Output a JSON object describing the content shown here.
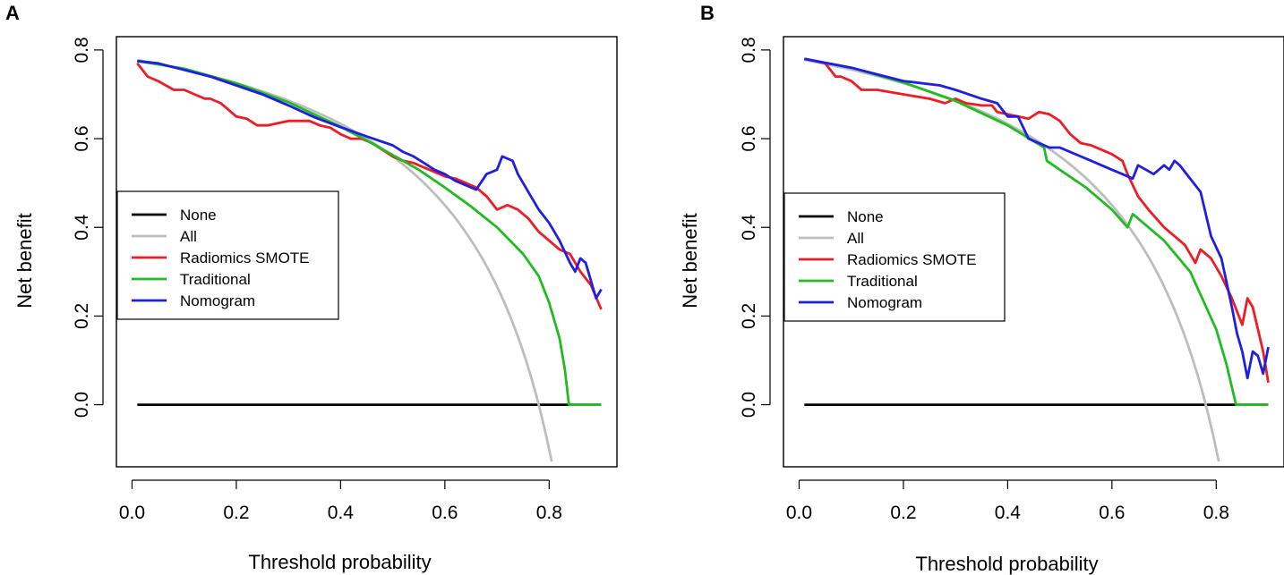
{
  "chart_data": [
    {
      "type": "line",
      "panel_label": "A",
      "xlabel": "Threshold probability",
      "ylabel": "Net benefit",
      "xlim": [
        -0.03,
        0.93
      ],
      "ylim": [
        -0.14,
        0.83
      ],
      "x_ticks": [
        0.0,
        0.2,
        0.4,
        0.6,
        0.8
      ],
      "x_tick_labels": [
        "0.0",
        "0.2",
        "0.4",
        "0.6",
        "0.8"
      ],
      "y_ticks": [
        0.0,
        0.2,
        0.4,
        0.6,
        0.8
      ],
      "y_tick_labels": [
        "0.0",
        "0.2",
        "0.4",
        "0.6",
        "0.8"
      ],
      "legend_position": "left",
      "series": [
        {
          "name": "None",
          "color": "#000000",
          "x": [
            0.01,
            0.9
          ],
          "y": [
            0.0,
            0.0
          ]
        },
        {
          "name": "All",
          "color": "#bebebe",
          "prevalence": 0.78,
          "x_range": [
            0.01,
            0.805
          ]
        },
        {
          "name": "Radiomics SMOTE",
          "color": "#ee1c25",
          "x": [
            0.01,
            0.03,
            0.05,
            0.08,
            0.1,
            0.12,
            0.14,
            0.15,
            0.17,
            0.18,
            0.2,
            0.22,
            0.24,
            0.26,
            0.28,
            0.3,
            0.32,
            0.34,
            0.36,
            0.38,
            0.4,
            0.42,
            0.44,
            0.46,
            0.48,
            0.5,
            0.52,
            0.54,
            0.56,
            0.58,
            0.6,
            0.62,
            0.64,
            0.66,
            0.68,
            0.7,
            0.72,
            0.74,
            0.76,
            0.78,
            0.8,
            0.82,
            0.84,
            0.86,
            0.88,
            0.9
          ],
          "y": [
            0.77,
            0.74,
            0.73,
            0.71,
            0.71,
            0.7,
            0.69,
            0.69,
            0.68,
            0.67,
            0.65,
            0.645,
            0.63,
            0.63,
            0.635,
            0.64,
            0.64,
            0.64,
            0.63,
            0.625,
            0.61,
            0.6,
            0.6,
            0.59,
            0.575,
            0.56,
            0.55,
            0.545,
            0.535,
            0.525,
            0.515,
            0.51,
            0.5,
            0.49,
            0.47,
            0.44,
            0.45,
            0.44,
            0.42,
            0.39,
            0.37,
            0.35,
            0.34,
            0.3,
            0.27,
            0.215
          ]
        },
        {
          "name": "Traditional",
          "color": "#22bb22",
          "x": [
            0.01,
            0.1,
            0.2,
            0.3,
            0.4,
            0.45,
            0.5,
            0.55,
            0.6,
            0.65,
            0.7,
            0.75,
            0.78,
            0.8,
            0.82,
            0.83,
            0.838,
            0.9
          ],
          "y": [
            0.775,
            0.758,
            0.725,
            0.682,
            0.627,
            0.596,
            0.563,
            0.53,
            0.49,
            0.447,
            0.4,
            0.34,
            0.29,
            0.23,
            0.15,
            0.08,
            0.0,
            0.0
          ]
        },
        {
          "name": "Nomogram",
          "color": "#1f1fe0",
          "x": [
            0.01,
            0.05,
            0.1,
            0.15,
            0.2,
            0.25,
            0.3,
            0.35,
            0.4,
            0.45,
            0.5,
            0.52,
            0.54,
            0.56,
            0.58,
            0.6,
            0.62,
            0.64,
            0.66,
            0.68,
            0.7,
            0.71,
            0.72,
            0.73,
            0.74,
            0.76,
            0.78,
            0.8,
            0.82,
            0.84,
            0.85,
            0.86,
            0.87,
            0.88,
            0.89,
            0.9
          ],
          "y": [
            0.775,
            0.77,
            0.755,
            0.74,
            0.72,
            0.7,
            0.675,
            0.648,
            0.626,
            0.605,
            0.585,
            0.57,
            0.56,
            0.545,
            0.53,
            0.52,
            0.505,
            0.495,
            0.485,
            0.52,
            0.53,
            0.56,
            0.555,
            0.55,
            0.52,
            0.48,
            0.44,
            0.41,
            0.37,
            0.32,
            0.3,
            0.33,
            0.32,
            0.28,
            0.24,
            0.26
          ]
        }
      ]
    },
    {
      "type": "line",
      "panel_label": "B",
      "xlabel": "Threshold probability",
      "ylabel": "Net benefit",
      "xlim": [
        -0.03,
        0.93
      ],
      "ylim": [
        -0.14,
        0.83
      ],
      "x_ticks": [
        0.0,
        0.2,
        0.4,
        0.6,
        0.8
      ],
      "x_tick_labels": [
        "0.0",
        "0.2",
        "0.4",
        "0.6",
        "0.8"
      ],
      "y_ticks": [
        0.0,
        0.2,
        0.4,
        0.6,
        0.8
      ],
      "y_tick_labels": [
        "0.0",
        "0.2",
        "0.4",
        "0.6",
        "0.8"
      ],
      "legend_position": "left",
      "series": [
        {
          "name": "None",
          "color": "#000000",
          "x": [
            0.01,
            0.9
          ],
          "y": [
            0.0,
            0.0
          ]
        },
        {
          "name": "All",
          "color": "#bebebe",
          "prevalence": 0.78,
          "x_range": [
            0.01,
            0.805
          ]
        },
        {
          "name": "Radiomics SMOTE",
          "color": "#ee1c25",
          "x": [
            0.01,
            0.05,
            0.07,
            0.08,
            0.1,
            0.12,
            0.15,
            0.2,
            0.25,
            0.28,
            0.3,
            0.32,
            0.35,
            0.37,
            0.38,
            0.4,
            0.42,
            0.44,
            0.46,
            0.48,
            0.5,
            0.52,
            0.54,
            0.56,
            0.58,
            0.6,
            0.62,
            0.63,
            0.65,
            0.67,
            0.7,
            0.72,
            0.74,
            0.76,
            0.77,
            0.79,
            0.81,
            0.83,
            0.85,
            0.86,
            0.87,
            0.88,
            0.89,
            0.9
          ],
          "y": [
            0.78,
            0.77,
            0.74,
            0.74,
            0.73,
            0.71,
            0.71,
            0.7,
            0.69,
            0.68,
            0.69,
            0.68,
            0.675,
            0.675,
            0.66,
            0.655,
            0.65,
            0.645,
            0.66,
            0.655,
            0.64,
            0.61,
            0.59,
            0.585,
            0.575,
            0.565,
            0.55,
            0.52,
            0.47,
            0.44,
            0.4,
            0.38,
            0.36,
            0.32,
            0.35,
            0.33,
            0.29,
            0.24,
            0.18,
            0.24,
            0.22,
            0.17,
            0.12,
            0.05
          ]
        },
        {
          "name": "Traditional",
          "color": "#22bb22",
          "x": [
            0.01,
            0.1,
            0.2,
            0.3,
            0.4,
            0.47,
            0.475,
            0.5,
            0.55,
            0.6,
            0.63,
            0.64,
            0.65,
            0.7,
            0.75,
            0.8,
            0.82,
            0.838,
            0.9
          ],
          "y": [
            0.78,
            0.76,
            0.727,
            0.685,
            0.63,
            0.58,
            0.55,
            0.53,
            0.49,
            0.44,
            0.4,
            0.43,
            0.42,
            0.37,
            0.3,
            0.17,
            0.09,
            0.0,
            0.0
          ]
        },
        {
          "name": "Nomogram",
          "color": "#1f1fe0",
          "x": [
            0.01,
            0.1,
            0.2,
            0.27,
            0.3,
            0.35,
            0.38,
            0.4,
            0.42,
            0.44,
            0.46,
            0.48,
            0.5,
            0.52,
            0.54,
            0.56,
            0.58,
            0.6,
            0.62,
            0.64,
            0.65,
            0.68,
            0.7,
            0.71,
            0.72,
            0.73,
            0.75,
            0.77,
            0.79,
            0.81,
            0.83,
            0.84,
            0.85,
            0.86,
            0.87,
            0.88,
            0.89,
            0.9
          ],
          "y": [
            0.78,
            0.76,
            0.73,
            0.72,
            0.71,
            0.69,
            0.68,
            0.65,
            0.65,
            0.6,
            0.59,
            0.58,
            0.58,
            0.57,
            0.56,
            0.55,
            0.54,
            0.53,
            0.52,
            0.51,
            0.54,
            0.52,
            0.54,
            0.53,
            0.55,
            0.54,
            0.51,
            0.48,
            0.38,
            0.33,
            0.22,
            0.16,
            0.12,
            0.06,
            0.12,
            0.11,
            0.07,
            0.13
          ]
        }
      ]
    }
  ]
}
